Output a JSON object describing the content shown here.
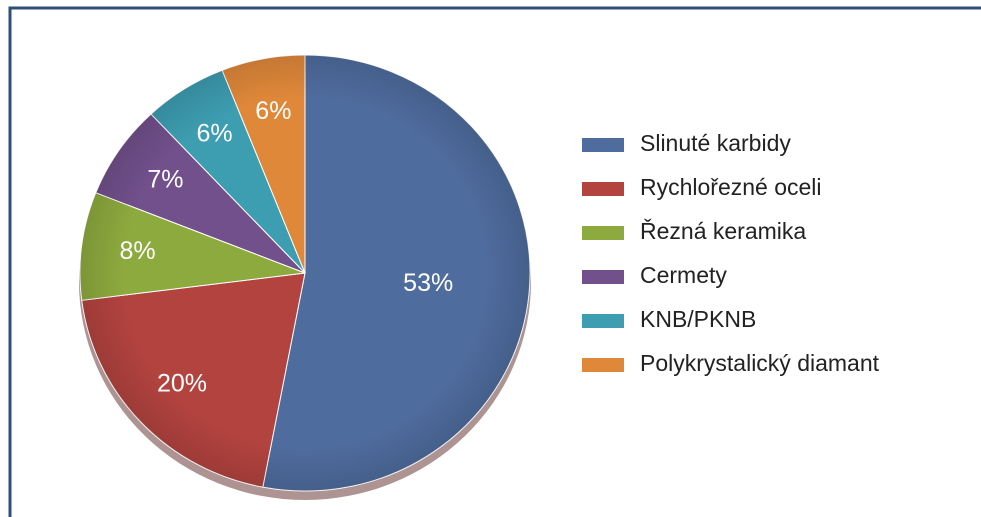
{
  "chart_data": {
    "type": "pie",
    "categories": [
      "Slinuté karbidy",
      "Rychlořezné oceli",
      "Řezná keramika",
      "Cermety",
      "KNB/PKNB",
      "Polykrystalický diamant"
    ],
    "values": [
      53,
      20,
      8,
      7,
      6,
      6
    ],
    "value_labels": [
      "53%",
      "20%",
      "8%",
      "7%",
      "6%",
      "6%"
    ],
    "colors": [
      "#4f6c9e",
      "#b3433f",
      "#8daa3e",
      "#72508c",
      "#3d9db1",
      "#e0883a"
    ],
    "legend": "right"
  }
}
